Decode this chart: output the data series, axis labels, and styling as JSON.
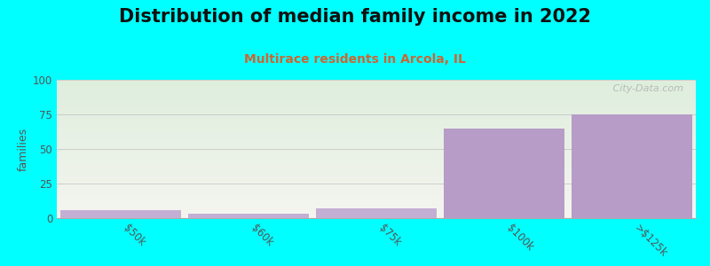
{
  "title": "Distribution of median family income in 2022",
  "subtitle": "Multirace residents in Arcola, IL",
  "categories": [
    "$50k",
    "$60k",
    "$75k",
    "$100k",
    ">$125k"
  ],
  "values": [
    6,
    3,
    7,
    65,
    75
  ],
  "bar_color_small": "#c4afd4",
  "bar_color_large": "#b89cc8",
  "ylabel": "families",
  "ylim": [
    0,
    100
  ],
  "yticks": [
    0,
    25,
    50,
    75,
    100
  ],
  "bg_color": "#00ffff",
  "plot_bg_top": "#deeedd",
  "plot_bg_bottom": "#f5f5f0",
  "grid_color": "#cccccc",
  "title_fontsize": 15,
  "subtitle_fontsize": 10,
  "subtitle_color": "#cc6633",
  "watermark": "   City-Data.com"
}
